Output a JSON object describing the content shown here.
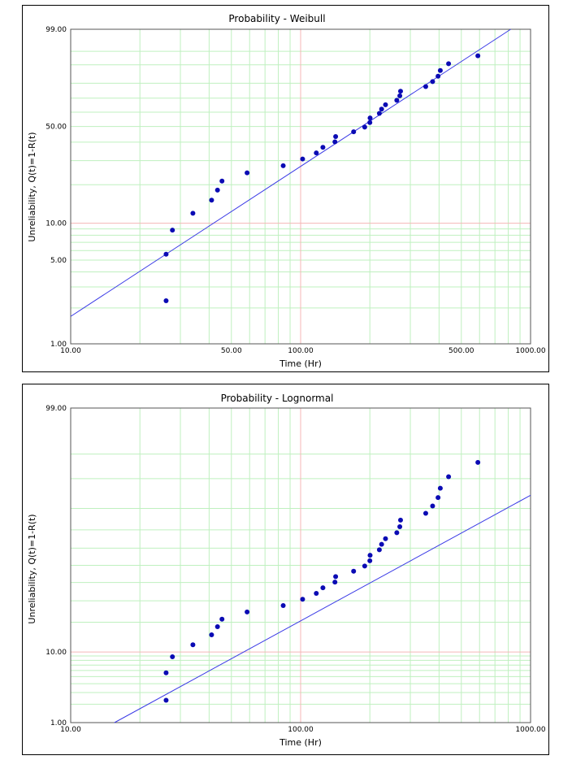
{
  "chart_data": [
    {
      "type": "scatter",
      "scale": "weibull",
      "title": "Probability - Weibull",
      "xlabel": "Time (Hr)",
      "ylabel": "Unreliability, Q(t)=1-R(t)",
      "xscale": "log",
      "xlim": [
        10,
        1000
      ],
      "ylim": [
        1,
        99
      ],
      "xtick_labels": [
        "10.00",
        "50.00",
        "100.00",
        "500.00",
        "1000.00"
      ],
      "ytick_labels": [
        "1.00",
        "5.00",
        "10.00",
        "50.00",
        "99.00"
      ],
      "grid": true,
      "colors": {
        "points": "#0b0bb4",
        "fit_line": "#3a3ae6",
        "major_grid": "#f4b6b6",
        "minor_grid": "#bff0bf"
      },
      "fit_line": {
        "x": [
          10,
          820
        ],
        "y": [
          1.7,
          99
        ]
      },
      "points": [
        {
          "x": 26.0,
          "y": 2.3
        },
        {
          "x": 26.0,
          "y": 5.6
        },
        {
          "x": 27.7,
          "y": 8.8
        },
        {
          "x": 34.0,
          "y": 12.0
        },
        {
          "x": 41.0,
          "y": 15.2
        },
        {
          "x": 43.5,
          "y": 18.2
        },
        {
          "x": 45.5,
          "y": 21.3
        },
        {
          "x": 58.5,
          "y": 24.5
        },
        {
          "x": 84.0,
          "y": 27.6
        },
        {
          "x": 102.0,
          "y": 30.8
        },
        {
          "x": 117.0,
          "y": 33.9
        },
        {
          "x": 125.0,
          "y": 37.0
        },
        {
          "x": 141.0,
          "y": 40.2
        },
        {
          "x": 142.0,
          "y": 43.4
        },
        {
          "x": 170.0,
          "y": 46.5
        },
        {
          "x": 190.0,
          "y": 49.6
        },
        {
          "x": 200.0,
          "y": 52.7
        },
        {
          "x": 200.5,
          "y": 55.9
        },
        {
          "x": 220.0,
          "y": 59.1
        },
        {
          "x": 225.0,
          "y": 62.2
        },
        {
          "x": 234.0,
          "y": 65.3
        },
        {
          "x": 262.0,
          "y": 68.5
        },
        {
          "x": 270.0,
          "y": 71.6
        },
        {
          "x": 272.0,
          "y": 74.8
        },
        {
          "x": 350.0,
          "y": 77.9
        },
        {
          "x": 375.0,
          "y": 81.0
        },
        {
          "x": 396.0,
          "y": 84.2
        },
        {
          "x": 405.0,
          "y": 87.3
        },
        {
          "x": 440.0,
          "y": 90.5
        },
        {
          "x": 590.0,
          "y": 93.6
        }
      ]
    },
    {
      "type": "scatter",
      "scale": "lognormal",
      "title": "Probability - Lognormal",
      "xlabel": "Time (Hr)",
      "ylabel": "Unreliability, Q(t)=1-R(t)",
      "xscale": "log",
      "xlim": [
        10,
        1000
      ],
      "ylim": [
        1,
        99
      ],
      "xtick_labels": [
        "10.00",
        "100.00",
        "1000.00"
      ],
      "ytick_labels": [
        "1.00",
        "10.00",
        "99.00"
      ],
      "grid": true,
      "colors": {
        "points": "#0b0bb4",
        "fit_line": "#3a3ae6",
        "major_grid": "#f4b6b6",
        "minor_grid": "#bff0bf"
      },
      "fit_line": {
        "x": [
          15.5,
          1000
        ],
        "y": [
          1.0,
          85.0
        ]
      },
      "points": [
        {
          "x": 26.0,
          "y": 2.3
        },
        {
          "x": 26.0,
          "y": 5.6
        },
        {
          "x": 27.7,
          "y": 8.8
        },
        {
          "x": 34.0,
          "y": 12.0
        },
        {
          "x": 41.0,
          "y": 15.2
        },
        {
          "x": 43.5,
          "y": 18.2
        },
        {
          "x": 45.5,
          "y": 21.3
        },
        {
          "x": 58.5,
          "y": 24.5
        },
        {
          "x": 84.0,
          "y": 27.6
        },
        {
          "x": 102.0,
          "y": 30.8
        },
        {
          "x": 117.0,
          "y": 33.9
        },
        {
          "x": 125.0,
          "y": 37.0
        },
        {
          "x": 141.0,
          "y": 40.2
        },
        {
          "x": 142.0,
          "y": 43.4
        },
        {
          "x": 170.0,
          "y": 46.5
        },
        {
          "x": 190.0,
          "y": 49.6
        },
        {
          "x": 200.0,
          "y": 52.7
        },
        {
          "x": 200.5,
          "y": 55.9
        },
        {
          "x": 220.0,
          "y": 59.1
        },
        {
          "x": 225.0,
          "y": 62.2
        },
        {
          "x": 234.0,
          "y": 65.3
        },
        {
          "x": 262.0,
          "y": 68.5
        },
        {
          "x": 270.0,
          "y": 71.6
        },
        {
          "x": 272.0,
          "y": 74.8
        },
        {
          "x": 350.0,
          "y": 77.9
        },
        {
          "x": 375.0,
          "y": 81.0
        },
        {
          "x": 396.0,
          "y": 84.2
        },
        {
          "x": 405.0,
          "y": 87.3
        },
        {
          "x": 440.0,
          "y": 90.5
        },
        {
          "x": 590.0,
          "y": 93.6
        }
      ]
    }
  ]
}
